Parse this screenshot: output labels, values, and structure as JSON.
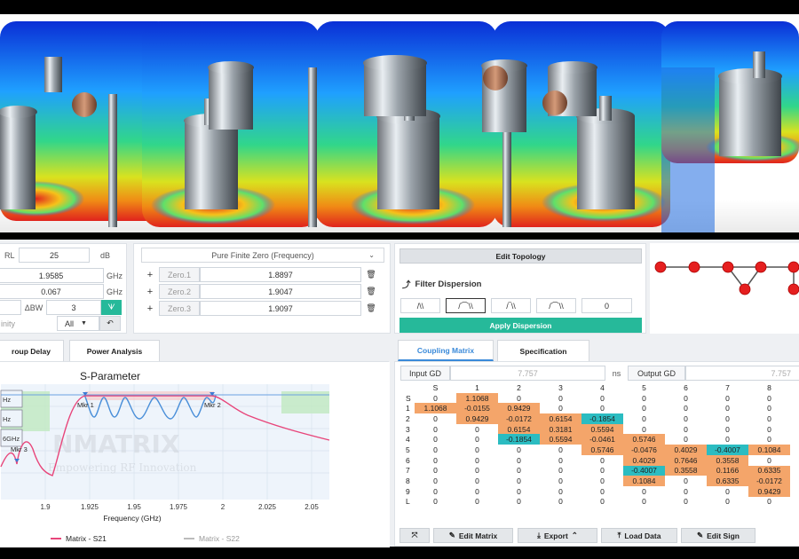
{
  "params": {
    "rl_label": "RL",
    "rl_value": "25",
    "rl_unit": "dB",
    "f_value": "1.9585",
    "f_unit": "GHz",
    "bw_value": "0.067",
    "bw_unit": "GHz",
    "dbw_label": "ΔBW",
    "dbw_value": "3",
    "inf_label": "inity",
    "all_value": "All"
  },
  "zeros": {
    "header": "Pure Finite Zero (Frequency)",
    "items": [
      {
        "name": "Zero.1",
        "value": "1.8897"
      },
      {
        "name": "Zero.2",
        "value": "1.9047"
      },
      {
        "name": "Zero.3",
        "value": "1.9097"
      }
    ]
  },
  "topology": {
    "edit_label": "Edit Topology"
  },
  "dispersion": {
    "title": "Filter Dispersion",
    "value": "0",
    "apply_label": "Apply Dispersion"
  },
  "analysis_tabs": [
    "roup Delay",
    "Power Analysis"
  ],
  "chart_data": {
    "type": "line",
    "title": "S-Parameter",
    "xlabel": "Frequency (GHz)",
    "x_ticks": [
      "1.9",
      "1.925",
      "1.95",
      "1.975",
      "2",
      "2.025",
      "2.05"
    ],
    "xlim": [
      1.875,
      2.06
    ],
    "markers": [
      "Mkr 1",
      "Mkr 2",
      "Mkr 3"
    ],
    "left_boxes": [
      "Hz",
      "Hz",
      "6GHz"
    ],
    "series": [
      {
        "name": "Matrix - S21",
        "color": "#e8457a"
      },
      {
        "name": "Matrix - S22",
        "color": "#bbbbbb"
      }
    ],
    "watermark": "NMATRIX",
    "watermark_sub": "Empowering RF Innovation"
  },
  "matrix": {
    "tabs": [
      "Coupling Matrix",
      "Specification"
    ],
    "input_gd_label": "Input GD",
    "input_gd_value": "7.757",
    "ns_label": "ns",
    "output_gd_label": "Output GD",
    "output_gd_value": "7.757",
    "col_heads": [
      "S",
      "1",
      "2",
      "3",
      "4",
      "5",
      "6",
      "7",
      "8"
    ],
    "rows": [
      {
        "h": "S",
        "v": [
          "0",
          "1.1068",
          "0",
          "0",
          "0",
          "0",
          "0",
          "0",
          "0"
        ]
      },
      {
        "h": "1",
        "v": [
          "1.1068",
          "-0.0155",
          "0.9429",
          "0",
          "0",
          "0",
          "0",
          "0",
          "0"
        ]
      },
      {
        "h": "2",
        "v": [
          "0",
          "0.9429",
          "-0.0172",
          "0.6154",
          "-0.1854",
          "0",
          "0",
          "0",
          "0"
        ]
      },
      {
        "h": "3",
        "v": [
          "0",
          "0",
          "0.6154",
          "0.3181",
          "0.5594",
          "0",
          "0",
          "0",
          "0"
        ]
      },
      {
        "h": "4",
        "v": [
          "0",
          "0",
          "-0.1854",
          "0.5594",
          "-0.0461",
          "0.5746",
          "0",
          "0",
          "0"
        ]
      },
      {
        "h": "5",
        "v": [
          "0",
          "0",
          "0",
          "0",
          "0.5746",
          "-0.0476",
          "0.4029",
          "-0.4007",
          "0.1084"
        ]
      },
      {
        "h": "6",
        "v": [
          "0",
          "0",
          "0",
          "0",
          "0",
          "0.4029",
          "0.7646",
          "0.3558",
          "0"
        ]
      },
      {
        "h": "7",
        "v": [
          "0",
          "0",
          "0",
          "0",
          "0",
          "-0.4007",
          "0.3558",
          "0.1166",
          "0.6335"
        ]
      },
      {
        "h": "8",
        "v": [
          "0",
          "0",
          "0",
          "0",
          "0",
          "0.1084",
          "0",
          "0.6335",
          "-0.0172"
        ]
      },
      {
        "h": "9",
        "v": [
          "0",
          "0",
          "0",
          "0",
          "0",
          "0",
          "0",
          "0",
          "0.9429"
        ]
      },
      {
        "h": "L",
        "v": [
          "0",
          "0",
          "0",
          "0",
          "0",
          "0",
          "0",
          "0",
          "0"
        ]
      }
    ],
    "buttons": [
      "Edit Matrix",
      "Export",
      "Load Data",
      "Edit Sign"
    ]
  }
}
